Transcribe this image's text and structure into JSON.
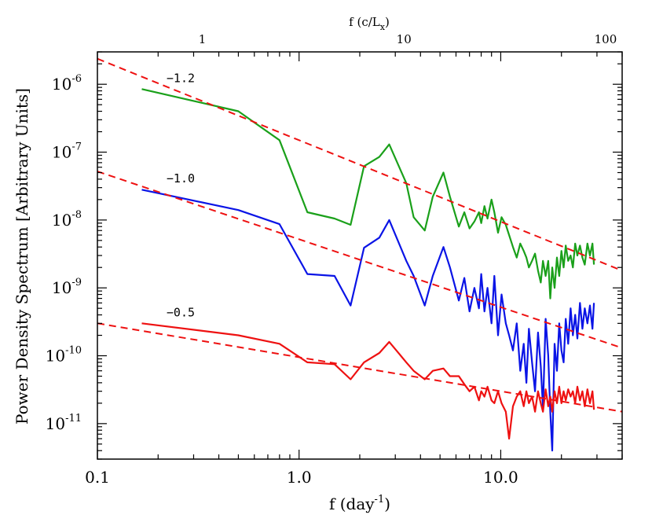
{
  "chart_data": {
    "type": "line",
    "ylabel": "Power Density Spectrum [Arbitrary Units]",
    "xlabel": {
      "main": "f  (day",
      "sup": "-1",
      "close": ")"
    },
    "top_axis_label": {
      "main": "f  (c/L",
      "sub": "x",
      "close": ")"
    },
    "x_scale": "log",
    "y_scale": "log",
    "xlim": [
      0.1,
      40
    ],
    "ylim": [
      3e-12,
      3e-06
    ],
    "x_ticks": [
      {
        "value": 0.1,
        "label": "0.1"
      },
      {
        "value": 1.0,
        "label": "1.0"
      },
      {
        "value": 10.0,
        "label": "10.0"
      }
    ],
    "top_ticks": [
      {
        "value": 1,
        "label": "1"
      },
      {
        "value": 10,
        "label": "10"
      },
      {
        "value": 100,
        "label": "100"
      }
    ],
    "top_axis_lim": [
      0.302,
      120.8
    ],
    "y_ticks": [
      {
        "value": 1e-06,
        "base": "10",
        "exp": "-6"
      },
      {
        "value": 1e-07,
        "base": "10",
        "exp": "-7"
      },
      {
        "value": 1e-08,
        "base": "10",
        "exp": "-8"
      },
      {
        "value": 1e-09,
        "base": "10",
        "exp": "-9"
      },
      {
        "value": 1e-10,
        "base": "10",
        "exp": "-10"
      },
      {
        "value": 1e-11,
        "base": "10",
        "exp": "-11"
      }
    ],
    "grid": false,
    "series": [
      {
        "color": "#1aa01a",
        "x": [
          0.166,
          0.5,
          0.8,
          1.1,
          1.5,
          1.8,
          2.1,
          2.5,
          2.8,
          3.4,
          3.7,
          4.2,
          4.6,
          5.2,
          5.6,
          6.2,
          6.6,
          7.0,
          7.4,
          7.8,
          8.0,
          8.3,
          8.6,
          9.0,
          9.3,
          9.7,
          10.1,
          10.6,
          11.0,
          11.5,
          12.0,
          12.5,
          13.0,
          13.4,
          13.8,
          14.3,
          14.8,
          15.3,
          15.8,
          16.2,
          16.7,
          17.2,
          17.6,
          18.0,
          18.5,
          19.0,
          19.5,
          20.0,
          20.5,
          21.0,
          21.6,
          22.2,
          22.8,
          23.4,
          24.0,
          24.7,
          25.4,
          26.1,
          26.9,
          27.7,
          28.5,
          29.0
        ],
        "y": [
          8.5e-07,
          4e-07,
          1.5e-07,
          1.3e-08,
          1.05e-08,
          8.5e-09,
          6.2e-08,
          8.5e-08,
          1.3e-07,
          3.5e-08,
          1.1e-08,
          7e-09,
          2.2e-08,
          5e-08,
          2.2e-08,
          8e-09,
          1.3e-08,
          7.5e-09,
          9.5e-09,
          1.3e-08,
          9e-09,
          1.6e-08,
          1.05e-08,
          2e-08,
          1.3e-08,
          6.5e-09,
          1.1e-08,
          8.5e-09,
          6e-09,
          4e-09,
          2.8e-09,
          4.5e-09,
          3.5e-09,
          2.8e-09,
          2e-09,
          2.5e-09,
          3.2e-09,
          1.8e-09,
          1.2e-09,
          2.5e-09,
          1.5e-09,
          2.5e-09,
          7e-10,
          2e-09,
          1e-09,
          2.8e-09,
          1.5e-09,
          3.5e-09,
          2e-09,
          4.2e-09,
          2.5e-09,
          3e-09,
          2e-09,
          4.5e-09,
          3e-09,
          4.2e-09,
          2.8e-09,
          2.2e-09,
          4.5e-09,
          3e-09,
          4.5e-09,
          2.2e-09
        ]
      },
      {
        "color": "#0a14e6",
        "x": [
          0.166,
          0.5,
          0.8,
          1.1,
          1.5,
          1.8,
          2.1,
          2.5,
          2.8,
          3.4,
          3.7,
          4.2,
          4.6,
          5.2,
          5.6,
          6.2,
          6.6,
          7.0,
          7.4,
          7.8,
          8.0,
          8.3,
          8.6,
          9.0,
          9.3,
          9.7,
          10.1,
          10.6,
          11.0,
          11.5,
          12.0,
          12.5,
          13.0,
          13.4,
          13.8,
          14.3,
          14.8,
          15.3,
          15.8,
          16.2,
          16.7,
          17.2,
          17.6,
          18.0,
          18.5,
          19.0,
          19.5,
          20.0,
          20.5,
          21.0,
          21.6,
          22.2,
          22.8,
          23.4,
          24.0,
          24.7,
          25.4,
          26.1,
          26.9,
          27.7,
          28.5,
          29.0
        ],
        "y": [
          2.8e-08,
          1.4e-08,
          8.7e-09,
          1.6e-09,
          1.5e-09,
          5.5e-10,
          3.9e-09,
          5.5e-09,
          1e-08,
          2.5e-09,
          1.5e-09,
          5.5e-10,
          1.5e-09,
          4e-09,
          2e-09,
          6.5e-10,
          1.4e-09,
          4.5e-10,
          1e-09,
          5e-10,
          1.6e-09,
          4.5e-10,
          1e-09,
          3e-10,
          1.5e-09,
          2e-10,
          8e-10,
          3e-10,
          2e-10,
          1.2e-10,
          3e-10,
          6e-11,
          1.5e-10,
          4e-11,
          2.5e-10,
          8e-11,
          3e-11,
          2.2e-10,
          7e-11,
          1.7e-11,
          3.5e-10,
          1e-10,
          1.5e-11,
          4e-12,
          1.5e-10,
          6e-11,
          3e-10,
          1.2e-10,
          8e-11,
          3.5e-10,
          1.5e-10,
          5e-10,
          2e-10,
          4e-10,
          1.8e-10,
          6e-10,
          2.5e-10,
          5e-10,
          3e-10,
          5.5e-10,
          2.5e-10,
          6e-10
        ]
      },
      {
        "color": "#ee1111",
        "x": [
          0.166,
          0.5,
          0.8,
          1.1,
          1.5,
          1.8,
          2.1,
          2.5,
          2.8,
          3.4,
          3.7,
          4.2,
          4.6,
          5.2,
          5.6,
          6.2,
          6.6,
          7.0,
          7.4,
          7.8,
          8.0,
          8.3,
          8.6,
          9.0,
          9.3,
          9.7,
          10.1,
          10.6,
          11.0,
          11.5,
          12.0,
          12.5,
          13.0,
          13.4,
          13.8,
          14.3,
          14.8,
          15.3,
          15.8,
          16.2,
          16.7,
          17.2,
          17.6,
          18.0,
          18.5,
          19.0,
          19.5,
          20.0,
          20.5,
          21.0,
          21.6,
          22.2,
          22.8,
          23.4,
          24.0,
          24.7,
          25.4,
          26.1,
          26.9,
          27.7,
          28.5,
          29.0
        ],
        "y": [
          3e-10,
          2e-10,
          1.5e-10,
          8e-11,
          7.5e-11,
          4.5e-11,
          8e-11,
          1.1e-10,
          1.6e-10,
          8e-11,
          6e-11,
          4.5e-11,
          6e-11,
          6.5e-11,
          5e-11,
          5e-11,
          3.8e-11,
          3e-11,
          3.5e-11,
          2.2e-11,
          3e-11,
          2.5e-11,
          3.5e-11,
          2.2e-11,
          2e-11,
          3e-11,
          2e-11,
          1.5e-11,
          6e-12,
          1.8e-11,
          2.5e-11,
          3e-11,
          1.8e-11,
          3e-11,
          2e-11,
          2.5e-11,
          1.5e-11,
          3e-11,
          2e-11,
          1.5e-11,
          3.2e-11,
          1.8e-11,
          2.5e-11,
          1.5e-11,
          3e-11,
          2e-11,
          3.5e-11,
          2e-11,
          3e-11,
          2.2e-11,
          3.2e-11,
          2.5e-11,
          3e-11,
          2e-11,
          3.5e-11,
          2.2e-11,
          3e-11,
          1.8e-11,
          3.2e-11,
          2e-11,
          3e-11,
          1.6e-11
        ]
      }
    ],
    "fits": [
      {
        "color": "#ee1111",
        "slope": -1.2,
        "amplitude_at_1": 1.5e-07,
        "label": "−1.2",
        "label_at": [
          0.22,
          1.08e-06
        ]
      },
      {
        "color": "#ee1111",
        "slope": -1.0,
        "amplitude_at_1": 5.2e-09,
        "label": "−1.0",
        "label_at": [
          0.22,
          3.6e-08
        ]
      },
      {
        "color": "#ee1111",
        "slope": -0.5,
        "amplitude_at_1": 9.5e-11,
        "label": "−0.5",
        "label_at": [
          0.22,
          3.8e-10
        ]
      }
    ]
  }
}
